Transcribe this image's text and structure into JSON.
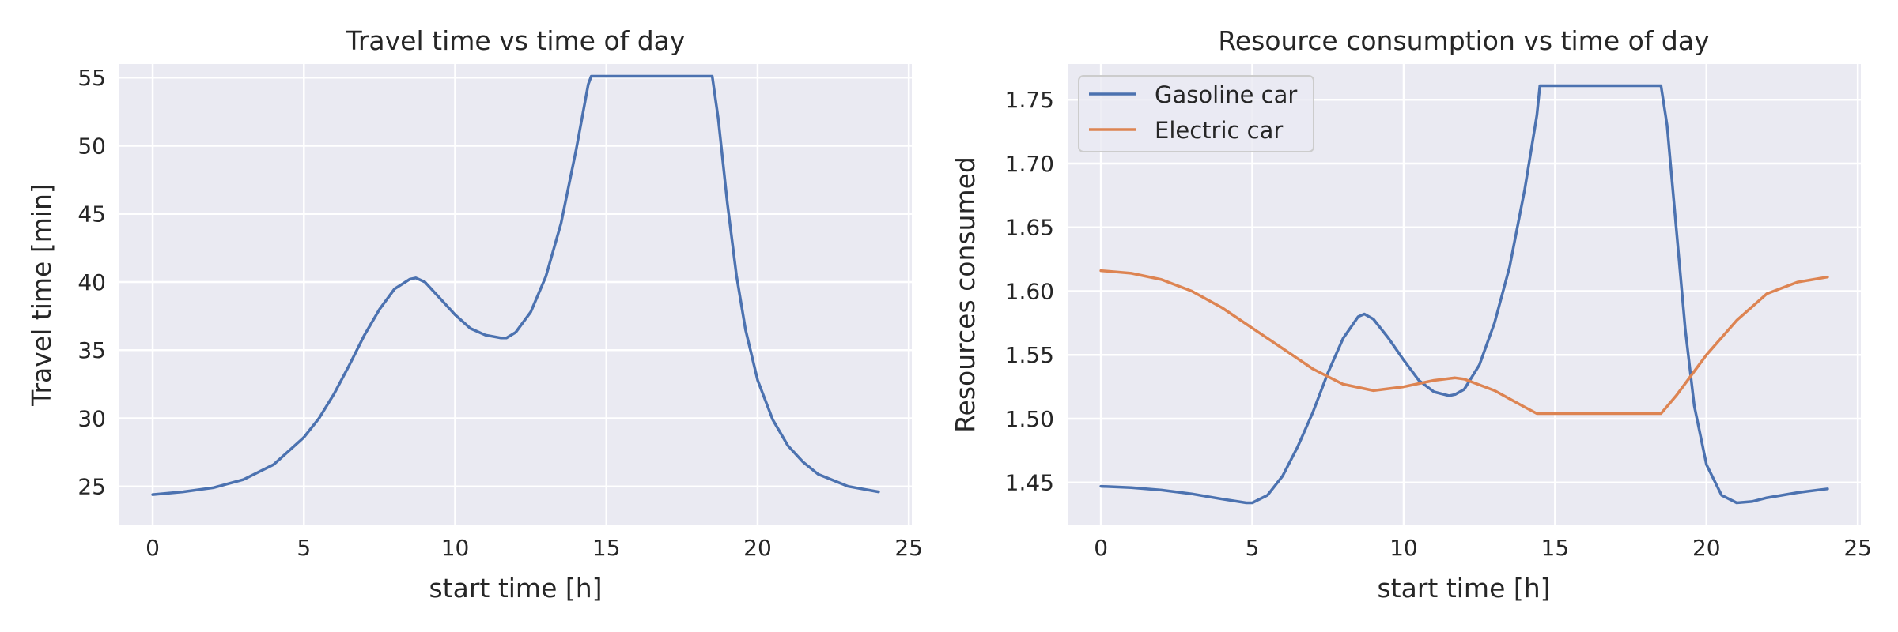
{
  "chart_data": [
    {
      "type": "line",
      "title": "Travel time vs time of day",
      "xlabel": "start time [h]",
      "ylabel": "Travel time [min]",
      "xlim": [
        -1.1,
        25.1
      ],
      "ylim": [
        22.2,
        56.0
      ],
      "xticks": [
        0,
        5,
        10,
        15,
        20,
        25
      ],
      "yticks": [
        25,
        30,
        35,
        40,
        45,
        50,
        55
      ],
      "grid": true,
      "legend": null,
      "series": [
        {
          "color": "#4c72b0",
          "x": [
            0,
            1,
            2,
            3,
            4,
            5,
            5.5,
            6,
            6.5,
            7,
            7.5,
            8,
            8.5,
            8.7,
            9,
            9.5,
            10,
            10.5,
            11,
            11.5,
            11.7,
            12,
            12.5,
            13,
            13.5,
            14,
            14.4,
            14.5,
            16,
            18.5,
            18.7,
            19,
            19.3,
            19.6,
            20,
            20.5,
            21,
            21.5,
            22,
            23,
            24
          ],
          "y": [
            24.4,
            24.6,
            24.9,
            25.5,
            26.6,
            28.6,
            30.0,
            31.8,
            33.9,
            36.1,
            38.0,
            39.5,
            40.2,
            40.3,
            40.0,
            38.8,
            37.6,
            36.6,
            36.1,
            35.9,
            35.9,
            36.3,
            37.8,
            40.4,
            44.3,
            49.7,
            54.5,
            55.1,
            55.1,
            55.1,
            52.0,
            45.8,
            40.5,
            36.5,
            32.8,
            29.9,
            28.0,
            26.8,
            25.9,
            25.0,
            24.6
          ]
        }
      ]
    },
    {
      "type": "line",
      "title": "Resource consumption vs time of day",
      "xlabel": "start time [h]",
      "ylabel": "Resources consumed",
      "xlim": [
        -1.1,
        25.1
      ],
      "ylim": [
        1.417,
        1.778
      ],
      "xticks": [
        0,
        5,
        10,
        15,
        20,
        25
      ],
      "yticks": [
        1.45,
        1.5,
        1.55,
        1.6,
        1.65,
        1.7,
        1.75
      ],
      "grid": true,
      "legend": "top-left",
      "series": [
        {
          "name": "Gasoline car",
          "color": "#4c72b0",
          "x": [
            0,
            1,
            2,
            3,
            4,
            4.8,
            5,
            5.5,
            6,
            6.5,
            7,
            7.5,
            8,
            8.5,
            8.7,
            9,
            9.5,
            10,
            10.5,
            11,
            11.5,
            11.7,
            12,
            12.5,
            13,
            13.5,
            14,
            14.4,
            14.5,
            16,
            18.5,
            18.7,
            19,
            19.3,
            19.6,
            20,
            20.5,
            21,
            21.5,
            22,
            23,
            24
          ],
          "y": [
            1.447,
            1.446,
            1.444,
            1.441,
            1.437,
            1.434,
            1.434,
            1.44,
            1.455,
            1.478,
            1.505,
            1.536,
            1.563,
            1.58,
            1.582,
            1.578,
            1.563,
            1.546,
            1.53,
            1.521,
            1.518,
            1.519,
            1.523,
            1.542,
            1.575,
            1.619,
            1.68,
            1.738,
            1.761,
            1.761,
            1.761,
            1.73,
            1.65,
            1.57,
            1.51,
            1.464,
            1.44,
            1.434,
            1.435,
            1.438,
            1.442,
            1.445
          ]
        },
        {
          "name": "Electric car",
          "color": "#dd8452",
          "x": [
            0,
            1,
            2,
            3,
            4,
            5,
            6,
            7,
            8,
            9,
            10,
            11,
            11.7,
            12,
            13,
            14,
            14.4,
            16,
            18.5,
            19,
            20,
            21,
            22,
            23,
            24
          ],
          "y": [
            1.616,
            1.614,
            1.609,
            1.6,
            1.587,
            1.571,
            1.555,
            1.539,
            1.527,
            1.522,
            1.525,
            1.53,
            1.532,
            1.531,
            1.522,
            1.509,
            1.504,
            1.504,
            1.504,
            1.518,
            1.55,
            1.577,
            1.598,
            1.607,
            1.611
          ]
        }
      ]
    }
  ]
}
